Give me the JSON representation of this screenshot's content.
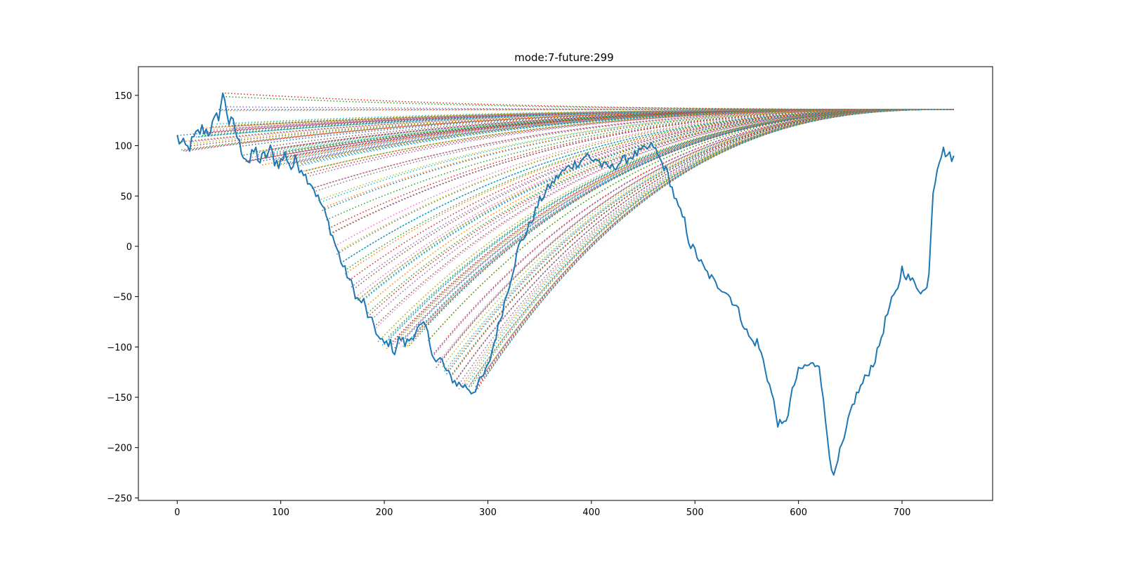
{
  "chart_data": {
    "type": "line",
    "title": "mode:7-future:299",
    "xlabel": "",
    "ylabel": "",
    "xlim": [
      -37.5,
      787.5
    ],
    "ylim": [
      -252.5,
      178.5
    ],
    "xticks": [
      0,
      100,
      200,
      300,
      400,
      500,
      600,
      700
    ],
    "yticks": [
      -250,
      -200,
      -150,
      -100,
      -50,
      0,
      50,
      100,
      150
    ],
    "grid": false,
    "legend": "none",
    "colors": [
      "#1f77b4",
      "#ff7f0e",
      "#2ca02c",
      "#d62728",
      "#9467bd",
      "#8c564b",
      "#e377c2",
      "#7f7f7f",
      "#bcbd22",
      "#17becf"
    ],
    "actual_series": {
      "color": "#1f77b4",
      "style": "solid",
      "x": [
        0,
        5,
        10,
        15,
        20,
        25,
        30,
        35,
        40,
        45,
        50,
        55,
        60,
        65,
        70,
        75,
        80,
        85,
        90,
        95,
        100,
        105,
        110,
        115,
        120,
        125,
        130,
        135,
        140,
        145,
        150,
        155,
        160,
        165,
        170,
        175,
        180,
        185,
        190,
        195,
        200,
        205,
        210,
        215,
        220,
        225,
        230,
        235,
        240,
        245,
        250,
        255,
        260,
        265,
        270,
        275,
        280,
        285,
        290,
        295,
        300,
        310,
        320,
        330,
        340,
        350,
        360,
        370,
        380,
        390,
        395,
        400,
        405,
        410,
        420,
        430,
        440,
        450,
        460,
        465,
        470,
        475,
        480,
        485,
        490,
        495,
        500,
        505,
        510,
        515,
        520,
        525,
        530,
        535,
        540,
        545,
        550,
        555,
        560,
        565,
        570,
        575,
        580,
        585,
        590,
        595,
        600,
        605,
        610,
        615,
        620,
        625,
        630,
        634,
        640,
        645,
        650,
        655,
        660,
        665,
        670,
        675,
        680,
        685,
        690,
        695,
        700,
        705,
        710,
        715,
        720,
        725,
        730,
        735,
        740,
        745,
        750
      ],
      "y": [
        108,
        100,
        97,
        104,
        112,
        117,
        114,
        121,
        131,
        153,
        123,
        120,
        101,
        91,
        83,
        97,
        84,
        90,
        95,
        84,
        84,
        92,
        78,
        85,
        78,
        68,
        62,
        50,
        40,
        26,
        10,
        -5,
        -20,
        -30,
        -42,
        -55,
        -55,
        -72,
        -78,
        -93,
        -97,
        -95,
        -105,
        -90,
        -97,
        -92,
        -85,
        -80,
        -80,
        -100,
        -115,
        -112,
        -125,
        -131,
        -136,
        -138,
        -140,
        -145,
        -138,
        -130,
        -120,
        -80,
        -40,
        0,
        20,
        45,
        60,
        72,
        80,
        85,
        92,
        85,
        88,
        80,
        78,
        85,
        90,
        95,
        100,
        88,
        80,
        68,
        50,
        35,
        25,
        2,
        -5,
        -15,
        -25,
        -30,
        -38,
        -40,
        -45,
        -52,
        -60,
        -72,
        -85,
        -95,
        -95,
        -110,
        -130,
        -150,
        -175,
        -180,
        -165,
        -140,
        -125,
        -120,
        -118,
        -118,
        -115,
        -165,
        -205,
        -232,
        -205,
        -190,
        -165,
        -150,
        -140,
        -130,
        -120,
        -110,
        -90,
        -70,
        -55,
        -45,
        -22,
        -30,
        -35,
        -40,
        -45,
        -42,
        55,
        85,
        95,
        90,
        88
      ]
    },
    "forecast_series_count": 150,
    "forecast_style": "dotted",
    "forecast_end": [
      750,
      136
    ]
  }
}
